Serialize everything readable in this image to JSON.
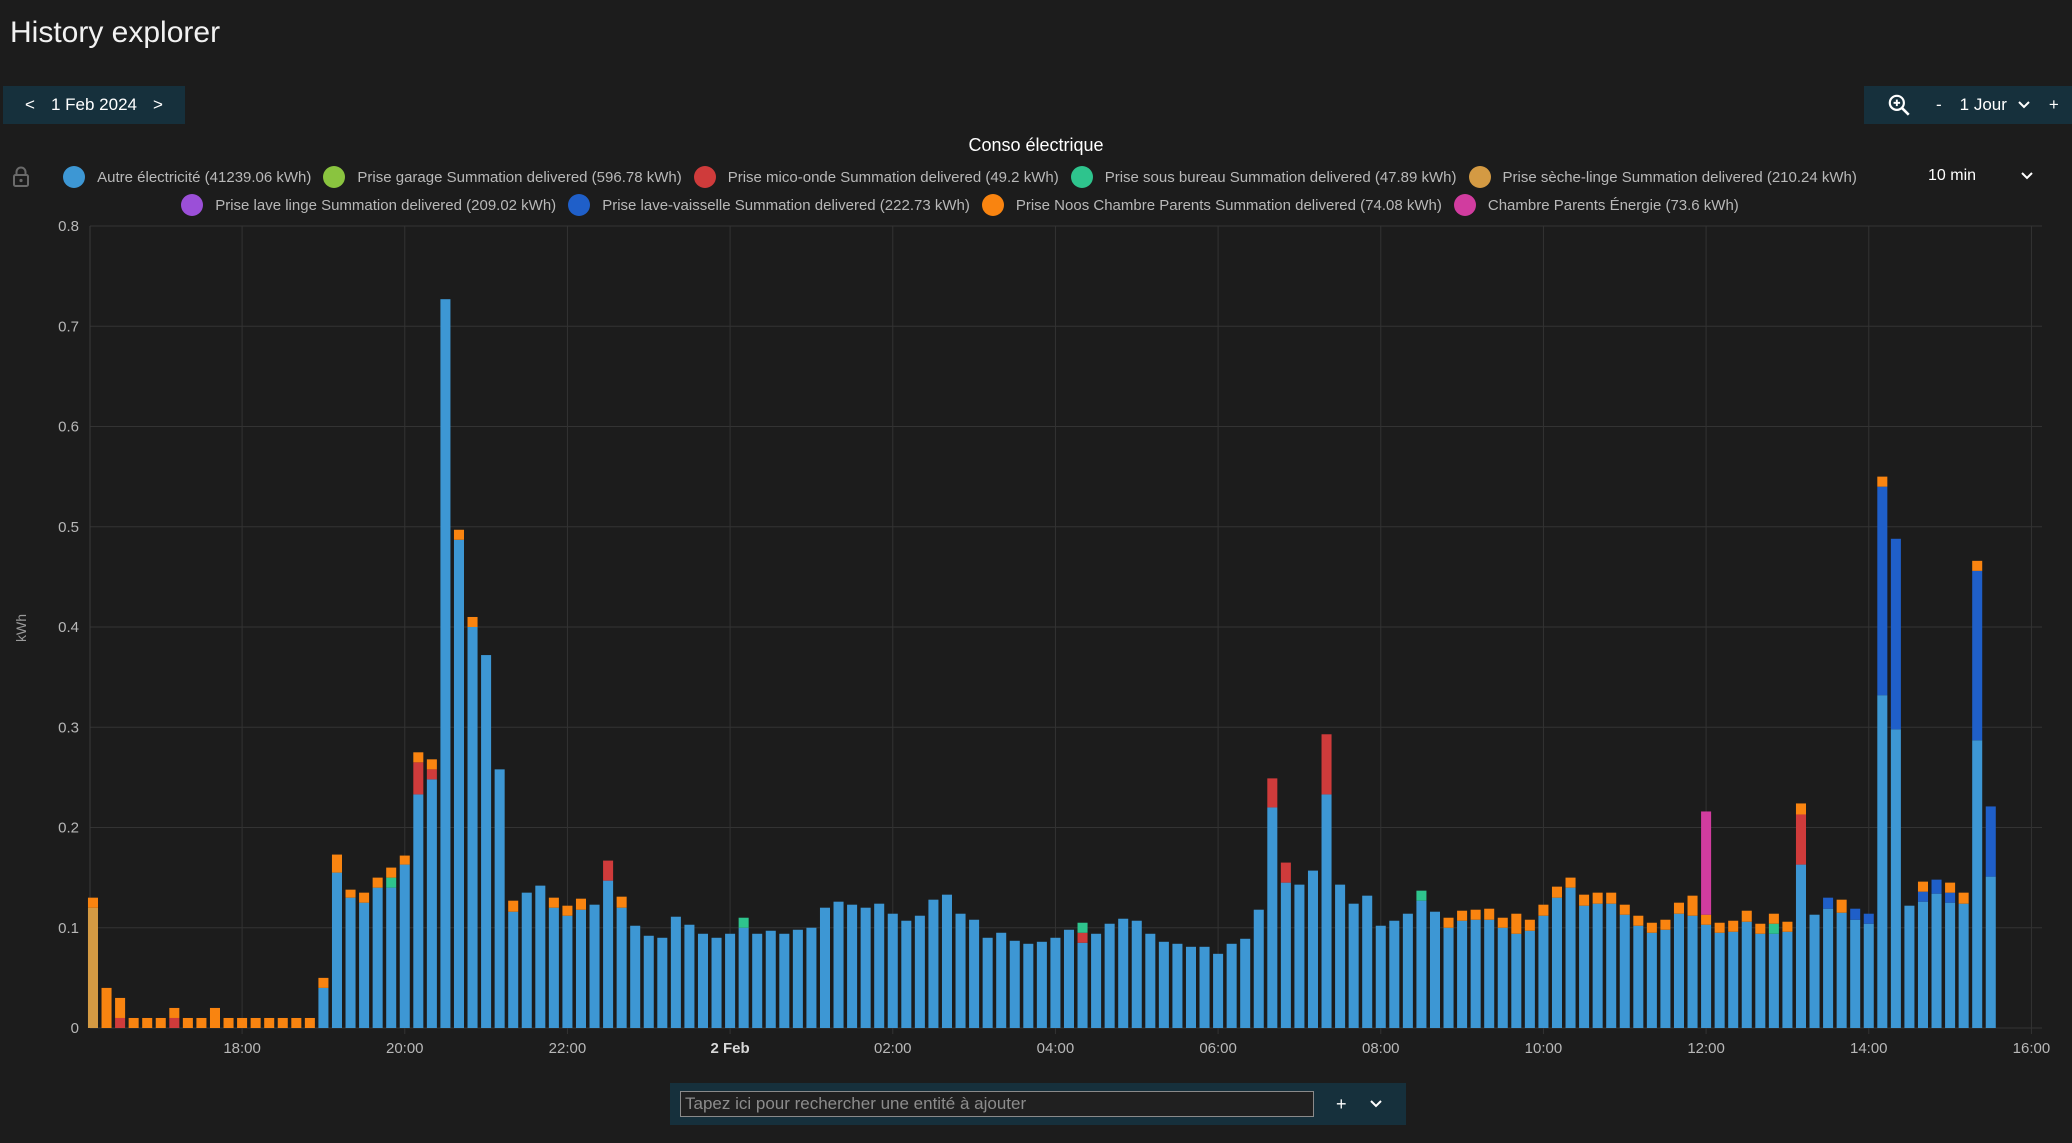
{
  "app": {
    "title": "History explorer"
  },
  "date_nav": {
    "prev": "<",
    "date": "1 Feb 2024",
    "next": ">"
  },
  "range_nav": {
    "minus": "-",
    "range": "1 Jour",
    "plus": "+"
  },
  "interval": {
    "selected": "10 min"
  },
  "search": {
    "placeholder": "Tapez ici pour rechercher une entité à ajouter",
    "add": "+"
  },
  "icons": {
    "zoom": "zoom-in-icon",
    "lock": "lock-icon",
    "chevron": "chevron-down-icon"
  },
  "chart_data": {
    "type": "bar",
    "stacked": true,
    "title": "Conso électrique",
    "ylabel": "kWh",
    "xlabel": "",
    "ylim": [
      0,
      0.8
    ],
    "yticks": [
      "0",
      "0.1",
      "0.2",
      "0.3",
      "0.4",
      "0.5",
      "0.6",
      "0.7",
      "0.8"
    ],
    "xticks": [
      {
        "label": "18:00",
        "hour": 18,
        "bold": false
      },
      {
        "label": "20:00",
        "hour": 20,
        "bold": false
      },
      {
        "label": "22:00",
        "hour": 22,
        "bold": false
      },
      {
        "label": "2 Feb",
        "hour": 24,
        "bold": true
      },
      {
        "label": "02:00",
        "hour": 26,
        "bold": false
      },
      {
        "label": "04:00",
        "hour": 28,
        "bold": false
      },
      {
        "label": "06:00",
        "hour": 30,
        "bold": false
      },
      {
        "label": "08:00",
        "hour": 32,
        "bold": false
      },
      {
        "label": "10:00",
        "hour": 34,
        "bold": false
      },
      {
        "label": "12:00",
        "hour": 36,
        "bold": false
      },
      {
        "label": "14:00",
        "hour": 38,
        "bold": false
      },
      {
        "label": "16:00",
        "hour": 40,
        "bold": false
      }
    ],
    "x_start_hour": 16.13,
    "x_end_hour": 40.13,
    "interval_minutes": 10,
    "grid": true,
    "legend_placement": "top",
    "series": [
      {
        "key": "autre",
        "name": "Autre électricité (41239.06 kWh)",
        "color": "#3d97d4"
      },
      {
        "key": "garage",
        "name": "Prise garage Summation delivered (596.78 kWh)",
        "color": "#8ac43f"
      },
      {
        "key": "micro",
        "name": "Prise mico-onde Summation delivered (49.2 kWh)",
        "color": "#cf3b3b"
      },
      {
        "key": "bureau",
        "name": "Prise sous bureau Summation delivered (47.89 kWh)",
        "color": "#2ec48d"
      },
      {
        "key": "seche",
        "name": "Prise sèche-linge Summation delivered (210.24 kWh)",
        "color": "#d49a43"
      },
      {
        "key": "lavelinge",
        "name": "Prise lave linge Summation delivered (209.02 kWh)",
        "color": "#9b4fd8"
      },
      {
        "key": "vaisselle",
        "name": "Prise lave-vaisselle Summation delivered (222.73 kWh)",
        "color": "#1f5fc9"
      },
      {
        "key": "noos",
        "name": "Prise Noos Chambre Parents Summation delivered (74.08 kWh)",
        "color": "#f98410"
      },
      {
        "key": "chambre",
        "name": "Chambre Parents Énergie (73.6 kWh)",
        "color": "#d13c9f"
      }
    ],
    "bars": [
      {
        "t": "16:10",
        "seche": 0.12,
        "noos": 0.01
      },
      {
        "t": "16:20",
        "noos": 0.04
      },
      {
        "t": "16:30",
        "micro": 0.01,
        "noos": 0.02
      },
      {
        "t": "16:40",
        "noos": 0.01
      },
      {
        "t": "16:50",
        "noos": 0.01
      },
      {
        "t": "17:00",
        "noos": 0.01
      },
      {
        "t": "17:10",
        "micro": 0.01,
        "noos": 0.01
      },
      {
        "t": "17:20",
        "noos": 0.01
      },
      {
        "t": "17:30",
        "noos": 0.01
      },
      {
        "t": "17:40",
        "noos": 0.02
      },
      {
        "t": "17:50",
        "noos": 0.01
      },
      {
        "t": "18:00",
        "noos": 0.01
      },
      {
        "t": "18:10",
        "noos": 0.01
      },
      {
        "t": "18:20",
        "noos": 0.01
      },
      {
        "t": "18:30",
        "noos": 0.01
      },
      {
        "t": "18:40",
        "noos": 0.01
      },
      {
        "t": "18:50",
        "noos": 0.01
      },
      {
        "t": "19:00",
        "autre": 0.04,
        "noos": 0.01
      },
      {
        "t": "19:10",
        "autre": 0.155,
        "noos": 0.018
      },
      {
        "t": "19:20",
        "autre": 0.13,
        "noos": 0.008
      },
      {
        "t": "19:30",
        "autre": 0.125,
        "noos": 0.01
      },
      {
        "t": "19:40",
        "autre": 0.14,
        "noos": 0.01
      },
      {
        "t": "19:50",
        "autre": 0.14,
        "bureau": 0.01,
        "noos": 0.01
      },
      {
        "t": "20:00",
        "autre": 0.163,
        "noos": 0.009
      },
      {
        "t": "20:10",
        "autre": 0.233,
        "micro": 0.032,
        "noos": 0.01
      },
      {
        "t": "20:20",
        "autre": 0.248,
        "micro": 0.01,
        "noos": 0.01
      },
      {
        "t": "20:30",
        "autre": 0.727
      },
      {
        "t": "20:40",
        "autre": 0.487,
        "noos": 0.01
      },
      {
        "t": "20:50",
        "autre": 0.4,
        "noos": 0.01
      },
      {
        "t": "21:00",
        "autre": 0.372
      },
      {
        "t": "21:10",
        "autre": 0.258
      },
      {
        "t": "21:20",
        "autre": 0.116,
        "noos": 0.011
      },
      {
        "t": "21:30",
        "autre": 0.135
      },
      {
        "t": "21:40",
        "autre": 0.142
      },
      {
        "t": "21:50",
        "autre": 0.12,
        "noos": 0.01
      },
      {
        "t": "22:00",
        "autre": 0.112,
        "noos": 0.01
      },
      {
        "t": "22:10",
        "autre": 0.118,
        "noos": 0.011
      },
      {
        "t": "22:20",
        "autre": 0.123
      },
      {
        "t": "22:30",
        "autre": 0.147,
        "micro": 0.02
      },
      {
        "t": "22:40",
        "autre": 0.12,
        "noos": 0.011
      },
      {
        "t": "22:50",
        "autre": 0.102
      },
      {
        "t": "23:00",
        "autre": 0.092
      },
      {
        "t": "23:10",
        "autre": 0.09
      },
      {
        "t": "23:20",
        "autre": 0.111
      },
      {
        "t": "23:30",
        "autre": 0.103
      },
      {
        "t": "23:40",
        "autre": 0.094
      },
      {
        "t": "23:50",
        "autre": 0.09
      },
      {
        "t": "00:00",
        "autre": 0.094
      },
      {
        "t": "00:10",
        "autre": 0.1,
        "bureau": 0.01
      },
      {
        "t": "00:20",
        "autre": 0.094
      },
      {
        "t": "00:30",
        "autre": 0.097
      },
      {
        "t": "00:40",
        "autre": 0.094
      },
      {
        "t": "00:50",
        "autre": 0.098
      },
      {
        "t": "01:00",
        "autre": 0.1
      },
      {
        "t": "01:10",
        "autre": 0.12
      },
      {
        "t": "01:20",
        "autre": 0.126
      },
      {
        "t": "01:30",
        "autre": 0.123
      },
      {
        "t": "01:40",
        "autre": 0.12
      },
      {
        "t": "01:50",
        "autre": 0.124
      },
      {
        "t": "02:00",
        "autre": 0.114
      },
      {
        "t": "02:10",
        "autre": 0.107
      },
      {
        "t": "02:20",
        "autre": 0.112
      },
      {
        "t": "02:30",
        "autre": 0.128
      },
      {
        "t": "02:40",
        "autre": 0.133
      },
      {
        "t": "02:50",
        "autre": 0.114
      },
      {
        "t": "03:00",
        "autre": 0.108
      },
      {
        "t": "03:10",
        "autre": 0.09
      },
      {
        "t": "03:20",
        "autre": 0.095
      },
      {
        "t": "03:30",
        "autre": 0.087
      },
      {
        "t": "03:40",
        "autre": 0.084
      },
      {
        "t": "03:50",
        "autre": 0.086
      },
      {
        "t": "04:00",
        "autre": 0.09
      },
      {
        "t": "04:10",
        "autre": 0.098
      },
      {
        "t": "04:20",
        "autre": 0.085,
        "micro": 0.01,
        "bureau": 0.01
      },
      {
        "t": "04:30",
        "autre": 0.094
      },
      {
        "t": "04:40",
        "autre": 0.104
      },
      {
        "t": "04:50",
        "autre": 0.109
      },
      {
        "t": "05:00",
        "autre": 0.107
      },
      {
        "t": "05:10",
        "autre": 0.094
      },
      {
        "t": "05:20",
        "autre": 0.086
      },
      {
        "t": "05:30",
        "autre": 0.084
      },
      {
        "t": "05:40",
        "autre": 0.081
      },
      {
        "t": "05:50",
        "autre": 0.081
      },
      {
        "t": "06:00",
        "autre": 0.074
      },
      {
        "t": "06:10",
        "autre": 0.084
      },
      {
        "t": "06:20",
        "autre": 0.089
      },
      {
        "t": "06:30",
        "autre": 0.118
      },
      {
        "t": "06:40",
        "autre": 0.22,
        "micro": 0.029
      },
      {
        "t": "06:50",
        "autre": 0.145,
        "micro": 0.02
      },
      {
        "t": "07:00",
        "autre": 0.143
      },
      {
        "t": "07:10",
        "autre": 0.157
      },
      {
        "t": "07:20",
        "autre": 0.233,
        "micro": 0.06
      },
      {
        "t": "07:30",
        "autre": 0.143
      },
      {
        "t": "07:40",
        "autre": 0.124
      },
      {
        "t": "07:50",
        "autre": 0.132
      },
      {
        "t": "08:00",
        "autre": 0.102
      },
      {
        "t": "08:10",
        "autre": 0.107
      },
      {
        "t": "08:20",
        "autre": 0.114
      },
      {
        "t": "08:30",
        "autre": 0.127,
        "bureau": 0.01
      },
      {
        "t": "08:40",
        "autre": 0.116
      },
      {
        "t": "08:50",
        "autre": 0.1,
        "noos": 0.01
      },
      {
        "t": "09:00",
        "autre": 0.107,
        "noos": 0.01
      },
      {
        "t": "09:10",
        "autre": 0.108,
        "noos": 0.01
      },
      {
        "t": "09:20",
        "autre": 0.108,
        "noos": 0.011
      },
      {
        "t": "09:30",
        "autre": 0.1,
        "noos": 0.01
      },
      {
        "t": "09:40",
        "autre": 0.094,
        "noos": 0.02
      },
      {
        "t": "09:50",
        "autre": 0.097,
        "noos": 0.011
      },
      {
        "t": "10:00",
        "autre": 0.112,
        "noos": 0.011
      },
      {
        "t": "10:10",
        "autre": 0.13,
        "noos": 0.011
      },
      {
        "t": "10:20",
        "autre": 0.14,
        "noos": 0.01
      },
      {
        "t": "10:30",
        "autre": 0.122,
        "noos": 0.011
      },
      {
        "t": "10:40",
        "autre": 0.124,
        "noos": 0.011
      },
      {
        "t": "10:50",
        "autre": 0.124,
        "noos": 0.011
      },
      {
        "t": "11:00",
        "autre": 0.113,
        "noos": 0.01
      },
      {
        "t": "11:10",
        "autre": 0.102,
        "noos": 0.01
      },
      {
        "t": "11:20",
        "autre": 0.095,
        "noos": 0.01
      },
      {
        "t": "11:30",
        "autre": 0.098,
        "noos": 0.01
      },
      {
        "t": "11:40",
        "autre": 0.114,
        "noos": 0.011
      },
      {
        "t": "11:50",
        "autre": 0.112,
        "noos": 0.02
      },
      {
        "t": "12:00",
        "autre": 0.103,
        "noos": 0.01,
        "chambre": 0.103
      },
      {
        "t": "12:10",
        "autre": 0.095,
        "noos": 0.01
      },
      {
        "t": "12:20",
        "autre": 0.096,
        "noos": 0.011
      },
      {
        "t": "12:30",
        "autre": 0.106,
        "noos": 0.011
      },
      {
        "t": "12:40",
        "autre": 0.094,
        "noos": 0.01
      },
      {
        "t": "12:50",
        "autre": 0.094,
        "bureau": 0.01,
        "noos": 0.01
      },
      {
        "t": "13:00",
        "autre": 0.096,
        "noos": 0.01
      },
      {
        "t": "13:10",
        "autre": 0.163,
        "micro": 0.05,
        "noos": 0.011
      },
      {
        "t": "13:20",
        "autre": 0.113
      },
      {
        "t": "13:30",
        "autre": 0.119,
        "vaisselle": 0.011
      },
      {
        "t": "13:40",
        "autre": 0.115,
        "noos": 0.013
      },
      {
        "t": "13:50",
        "autre": 0.108,
        "vaisselle": 0.011
      },
      {
        "t": "14:00",
        "autre": 0.104,
        "vaisselle": 0.01
      },
      {
        "t": "14:10",
        "autre": 0.332,
        "vaisselle": 0.208,
        "noos": 0.01
      },
      {
        "t": "14:20",
        "autre": 0.298,
        "vaisselle": 0.19
      },
      {
        "t": "14:30",
        "autre": 0.122
      },
      {
        "t": "14:40",
        "autre": 0.126,
        "vaisselle": 0.01,
        "noos": 0.01
      },
      {
        "t": "14:50",
        "autre": 0.134,
        "vaisselle": 0.014
      },
      {
        "t": "15:00",
        "autre": 0.125,
        "vaisselle": 0.01,
        "noos": 0.01
      },
      {
        "t": "15:10",
        "autre": 0.124,
        "noos": 0.011
      },
      {
        "t": "15:20",
        "autre": 0.287,
        "vaisselle": 0.169,
        "noos": 0.01
      },
      {
        "t": "15:30",
        "autre": 0.151,
        "vaisselle": 0.07
      }
    ]
  }
}
